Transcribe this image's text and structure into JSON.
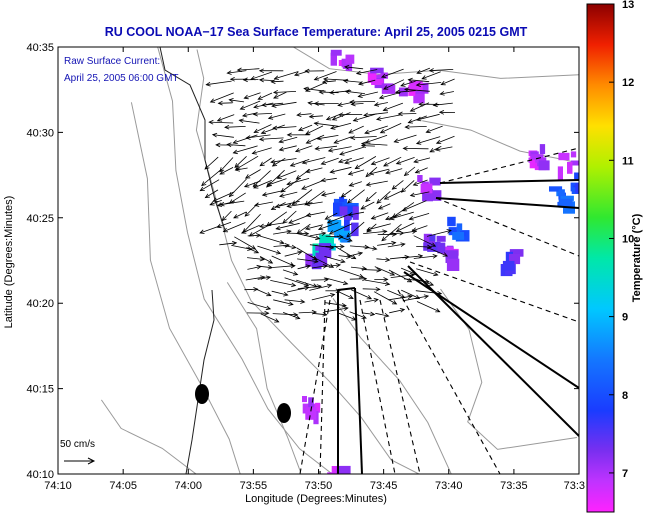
{
  "chart_data": {
    "type": "scatter",
    "title": "RU COOL  NOAA−17  Sea Surface Temperature:  April 25, 2005 0215 GMT",
    "annotation_lines": [
      "Raw Surface Current:",
      "April 25, 2005 06:00 GMT"
    ],
    "scale_label": "50 cm/s",
    "xlabel": "Longitude (Degrees:Minutes)",
    "ylabel": "Latitude (Degrees:Minutes)",
    "colorbar_label": "Temperature (°C)",
    "xlim": [
      -74.1667,
      -73.5
    ],
    "ylim": [
      40.1667,
      40.5833
    ],
    "x_ticks": [
      {
        "label": "74:10",
        "value": -74.1667
      },
      {
        "label": "74:05",
        "value": -74.0833
      },
      {
        "label": "74:00",
        "value": -74.0
      },
      {
        "label": "73:55",
        "value": -73.9167
      },
      {
        "label": "73:50",
        "value": -73.8333
      },
      {
        "label": "73:45",
        "value": -73.75
      },
      {
        "label": "73:40",
        "value": -73.6667
      },
      {
        "label": "73:35",
        "value": -73.5833
      },
      {
        "label": "73:3",
        "value": -73.5
      }
    ],
    "y_ticks": [
      {
        "label": "40:10",
        "value": 40.1667
      },
      {
        "label": "40:15",
        "value": 40.25
      },
      {
        "label": "40:20",
        "value": 40.3333
      },
      {
        "label": "40:25",
        "value": 40.4167
      },
      {
        "label": "40:30",
        "value": 40.5
      },
      {
        "label": "40:35",
        "value": 40.5833
      }
    ],
    "colorbar": {
      "min": 6.5,
      "max": 13,
      "ticks": [
        {
          "label": "7",
          "value": 7
        },
        {
          "label": "8",
          "value": 8
        },
        {
          "label": "9",
          "value": 9
        },
        {
          "label": "10",
          "value": 10
        },
        {
          "label": "11",
          "value": 11
        },
        {
          "label": "12",
          "value": 12
        },
        {
          "label": "13",
          "value": 13
        }
      ]
    },
    "temperature_patches": [
      {
        "lon": -73.52,
        "lat": 40.475,
        "temp": 6.8
      },
      {
        "lon": -73.505,
        "lat": 40.455,
        "temp": 7.8
      },
      {
        "lon": -73.53,
        "lat": 40.44,
        "temp": 8.3
      },
      {
        "lon": -73.805,
        "lat": 40.43,
        "temp": 8.0
      },
      {
        "lon": -73.815,
        "lat": 40.41,
        "temp": 8.6
      },
      {
        "lon": -73.83,
        "lat": 40.395,
        "temp": 9.5
      },
      {
        "lon": -73.84,
        "lat": 40.385,
        "temp": 7.2
      },
      {
        "lon": -73.8,
        "lat": 40.42,
        "temp": 7.6
      },
      {
        "lon": -73.66,
        "lat": 40.41,
        "temp": 8.2
      },
      {
        "lon": -73.675,
        "lat": 40.385,
        "temp": 7.0
      },
      {
        "lon": -73.7,
        "lat": 40.45,
        "temp": 7.0
      },
      {
        "lon": -73.69,
        "lat": 40.395,
        "temp": 7.4
      },
      {
        "lon": -73.6,
        "lat": 40.378,
        "temp": 7.5
      },
      {
        "lon": -73.72,
        "lat": 40.545,
        "temp": 6.9
      },
      {
        "lon": -73.76,
        "lat": 40.555,
        "temp": 6.9
      },
      {
        "lon": -73.81,
        "lat": 40.575,
        "temp": 6.9
      },
      {
        "lon": -73.845,
        "lat": 40.235,
        "temp": 6.9
      },
      {
        "lon": -73.82,
        "lat": 40.17,
        "temp": 6.9
      },
      {
        "lon": -73.56,
        "lat": 40.48,
        "temp": 6.9
      }
    ]
  }
}
